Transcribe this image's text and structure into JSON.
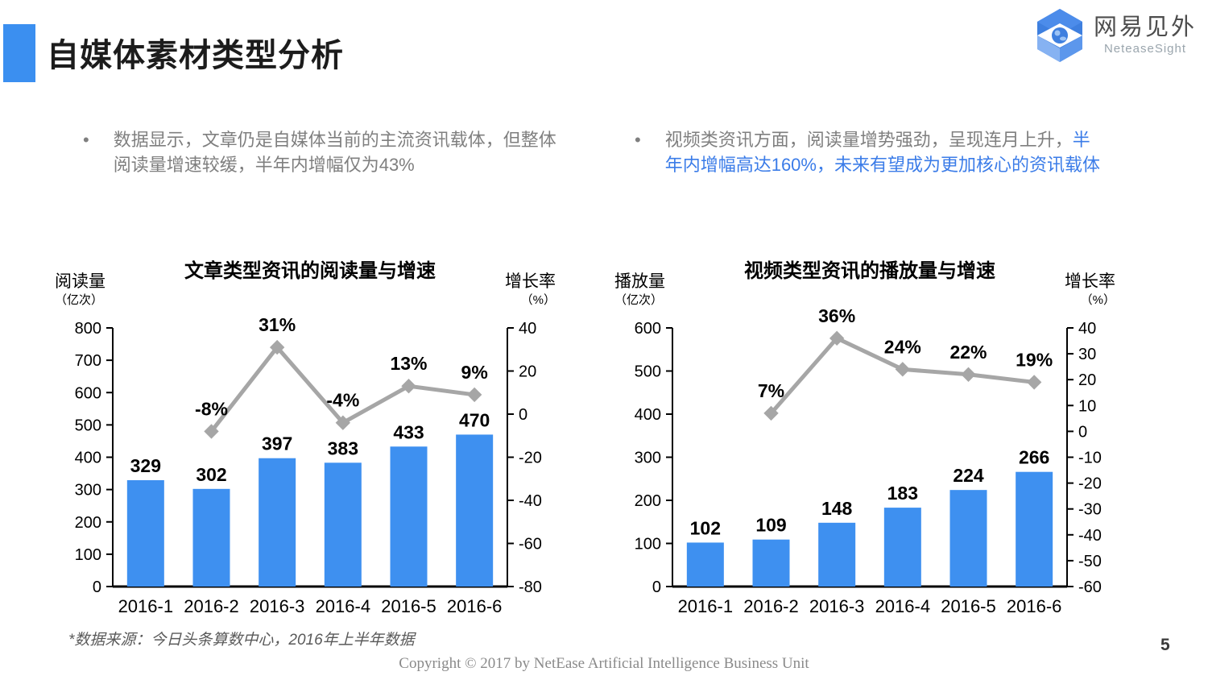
{
  "header": {
    "title": "自媒体素材类型分析"
  },
  "logo": {
    "name_cn": "网易见外",
    "name_en": "NeteaseSight"
  },
  "bullets": {
    "marker": "•",
    "left_text": "数据显示，文章仍是自媒体当前的主流资讯载体，但整体阅读量增速较缓，半年内增幅仅为43%",
    "right_text_gray": "视频类资讯方面，阅读量增势强劲，呈现连月上升，",
    "right_text_blue": "半年内增幅高达160%，未来有望成为更加核心的资讯载体"
  },
  "chart_data": [
    {
      "type": "bar+line",
      "title": "文章类型资讯的阅读量与增速",
      "categories": [
        "2016-1",
        "2016-2",
        "2016-3",
        "2016-4",
        "2016-5",
        "2016-6"
      ],
      "series": [
        {
          "name": "阅读量",
          "type": "bar",
          "color": "#3E90F0",
          "values": [
            329,
            302,
            397,
            383,
            433,
            470
          ]
        },
        {
          "name": "增长率",
          "type": "line",
          "color": "#A6A6A6",
          "values": [
            null,
            -8,
            31,
            -4,
            13,
            9
          ],
          "labels": [
            "",
            "-8%",
            "31%",
            "-4%",
            "13%",
            "9%"
          ]
        }
      ],
      "left_axis": {
        "label": "阅读量",
        "unit": "（亿次）",
        "range": [
          0,
          800
        ],
        "step": 100
      },
      "right_axis": {
        "label": "增长率",
        "unit": "（%）",
        "range": [
          -80,
          40
        ],
        "step": 20
      },
      "grid": false,
      "legend": "none"
    },
    {
      "type": "bar+line",
      "title": "视频类型资讯的播放量与增速",
      "categories": [
        "2016-1",
        "2016-2",
        "2016-3",
        "2016-4",
        "2016-5",
        "2016-6"
      ],
      "series": [
        {
          "name": "播放量",
          "type": "bar",
          "color": "#3E90F0",
          "values": [
            102,
            109,
            148,
            183,
            224,
            266
          ]
        },
        {
          "name": "增长率",
          "type": "line",
          "color": "#A6A6A6",
          "values": [
            null,
            7,
            36,
            24,
            22,
            19
          ],
          "labels": [
            "",
            "7%",
            "36%",
            "24%",
            "22%",
            "19%"
          ]
        }
      ],
      "left_axis": {
        "label": "播放量",
        "unit": "（亿次）",
        "range": [
          0,
          600
        ],
        "step": 100
      },
      "right_axis": {
        "label": "增长率",
        "unit": "（%）",
        "range": [
          -60,
          40
        ],
        "step": 10
      },
      "grid": false,
      "legend": "none"
    }
  ],
  "footer": {
    "footnote": "*数据来源：今日头条算数中心，2016年上半年数据",
    "copyright": "Copyright © 2017 by NetEase Artificial Intelligence Business Unit",
    "page_number": "5"
  }
}
